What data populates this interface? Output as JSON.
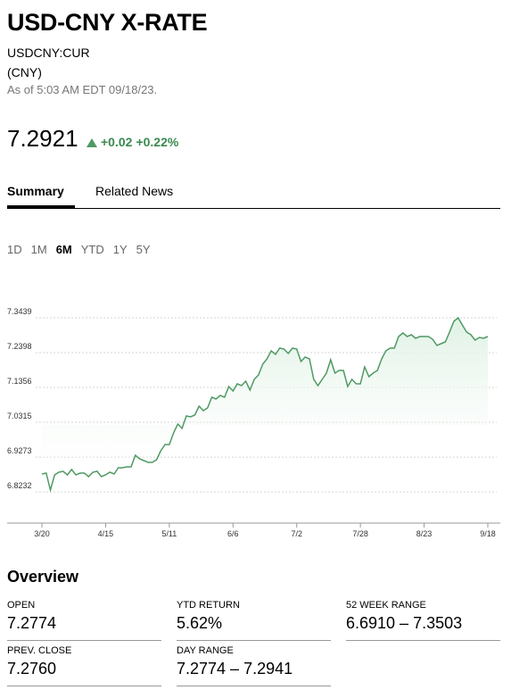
{
  "header": {
    "title": "USD-CNY X-RATE",
    "ticker": "USDCNY:CUR",
    "currency": "(CNY)",
    "as_of": "As of 5:03 AM EDT 09/18/23."
  },
  "quote": {
    "price": "7.2921",
    "change": "+0.02",
    "change_percent": "+0.22%"
  },
  "tabs": [
    "Summary",
    "Related News"
  ],
  "ranges": [
    "1D",
    "1M",
    "6M",
    "YTD",
    "1Y",
    "5Y"
  ],
  "active_range": "6M",
  "chart_data": {
    "type": "line",
    "color": "#4f9a63",
    "grid": true,
    "xticks": [
      "3/20",
      "4/15",
      "5/11",
      "6/6",
      "7/2",
      "7/28",
      "8/23",
      "9/18"
    ],
    "ylim": [
      6.73,
      7.4133
    ],
    "yticks": [
      6.8232,
      6.9273,
      7.0315,
      7.1356,
      7.2398,
      7.3439
    ],
    "values": [
      6.8768,
      6.8795,
      6.8287,
      6.8741,
      6.8821,
      6.8848,
      6.8741,
      6.8901,
      6.8741,
      6.8795,
      6.8795,
      6.8688,
      6.8821,
      6.8848,
      6.8688,
      6.8741,
      6.8821,
      6.8768,
      6.8955,
      6.8955,
      6.8981,
      6.8981,
      6.9328,
      6.9222,
      6.9168,
      6.9115,
      6.9115,
      6.9195,
      6.9462,
      6.9649,
      6.9649,
      6.9996,
      7.0263,
      7.0129,
      7.0503,
      7.0476,
      7.053,
      7.0796,
      7.0663,
      7.0743,
      7.1063,
      7.101,
      7.1117,
      7.1063,
      7.1384,
      7.125,
      7.1464,
      7.141,
      7.1544,
      7.1277,
      7.1597,
      7.1731,
      7.2051,
      7.2211,
      7.2451,
      7.2345,
      7.2531,
      7.2505,
      7.2371,
      7.2531,
      7.2505,
      7.2131,
      7.2265,
      7.2211,
      7.1597,
      7.141,
      7.1597,
      7.1784,
      7.2184,
      7.1784,
      7.1864,
      7.1864,
      7.1384,
      7.1597,
      7.1464,
      7.1464,
      7.1971,
      7.1677,
      7.1784,
      7.1864,
      7.2211,
      7.2451,
      7.2531,
      7.2531,
      7.2878,
      7.2985,
      7.2878,
      7.2932,
      7.2825,
      7.2878,
      7.2878,
      7.2878,
      7.2798,
      7.2612,
      7.2665,
      7.2718,
      7.3012,
      7.3332,
      7.3439,
      7.3225,
      7.3012,
      7.2932,
      7.2772,
      7.2852,
      7.2825,
      7.2878
    ]
  },
  "overview": {
    "title": "Overview",
    "fields": [
      {
        "label": "OPEN",
        "value": "7.2774"
      },
      {
        "label": "YTD RETURN",
        "value": "5.62%"
      },
      {
        "label": "52 WEEK RANGE",
        "value": "6.6910 – 7.3503"
      },
      {
        "label": "PREV. CLOSE",
        "value": "7.2760"
      },
      {
        "label": "DAY RANGE",
        "value": "7.2774 – 7.2941"
      }
    ]
  }
}
